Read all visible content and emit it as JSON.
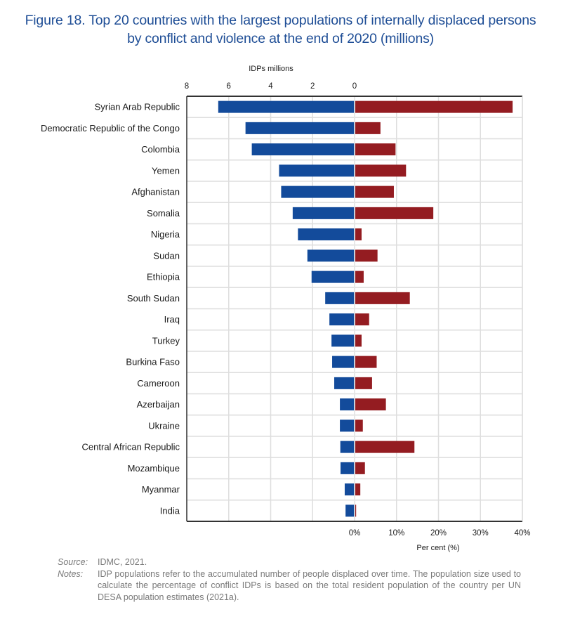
{
  "title": {
    "line1": "Figure 18. Top 20 countries with the largest populations of internally displaced persons",
    "line2": "by conflict and violence at the end of 2020 (millions)"
  },
  "chart_data": {
    "type": "bar",
    "orientation": "horizontal-diverging",
    "title": "Figure 18. Top 20 countries with the largest populations of internally displaced persons by conflict and violence at the end of 2020 (millions)",
    "categories": [
      "Syrian Arab Republic",
      "Democratic Republic of the Congo",
      "Colombia",
      "Yemen",
      "Afghanistan",
      "Somalia",
      "Nigeria",
      "Sudan",
      "Ethiopia",
      "South Sudan",
      "Iraq",
      "Turkey",
      "Burkina Faso",
      "Cameroon",
      "Azerbaijan",
      "Ukraine",
      "Central African Republic",
      "Mozambique",
      "Myanmar",
      "India"
    ],
    "series": [
      {
        "name": "IDPs millions",
        "color": "#134b9b",
        "direction": "left",
        "values": [
          6.5,
          5.2,
          4.9,
          3.6,
          3.5,
          2.95,
          2.7,
          2.25,
          2.05,
          1.4,
          1.2,
          1.1,
          1.07,
          0.97,
          0.7,
          0.7,
          0.68,
          0.67,
          0.47,
          0.43
        ]
      },
      {
        "name": "Per cent (%)",
        "color": "#941c21",
        "direction": "right",
        "values": [
          37.5,
          6.0,
          9.6,
          12.1,
          9.2,
          18.6,
          1.5,
          5.3,
          2.0,
          13.0,
          3.3,
          1.5,
          5.1,
          4.0,
          7.3,
          1.8,
          14.1,
          2.3,
          1.2,
          0.1
        ]
      }
    ],
    "top_axis": {
      "label": "IDPs millions",
      "ticks": [
        "8",
        "6",
        "4",
        "2",
        "0"
      ],
      "range": [
        8,
        0
      ]
    },
    "bottom_axis": {
      "label": "Per cent (%)",
      "ticks": [
        "0%",
        "10%",
        "20%",
        "30%",
        "40%"
      ],
      "range": [
        0,
        40
      ]
    },
    "grid": true,
    "legend": "none"
  },
  "footer": {
    "source_key": "Source:",
    "source_val": "IDMC, 2021.",
    "notes_key": "Notes:",
    "notes_val": "IDP populations refer to the accumulated number of people displaced over time. The population size used to calculate the percentage of conflict IDPs is based on the total resident population of the country per UN DESA population estimates (2021a)."
  }
}
